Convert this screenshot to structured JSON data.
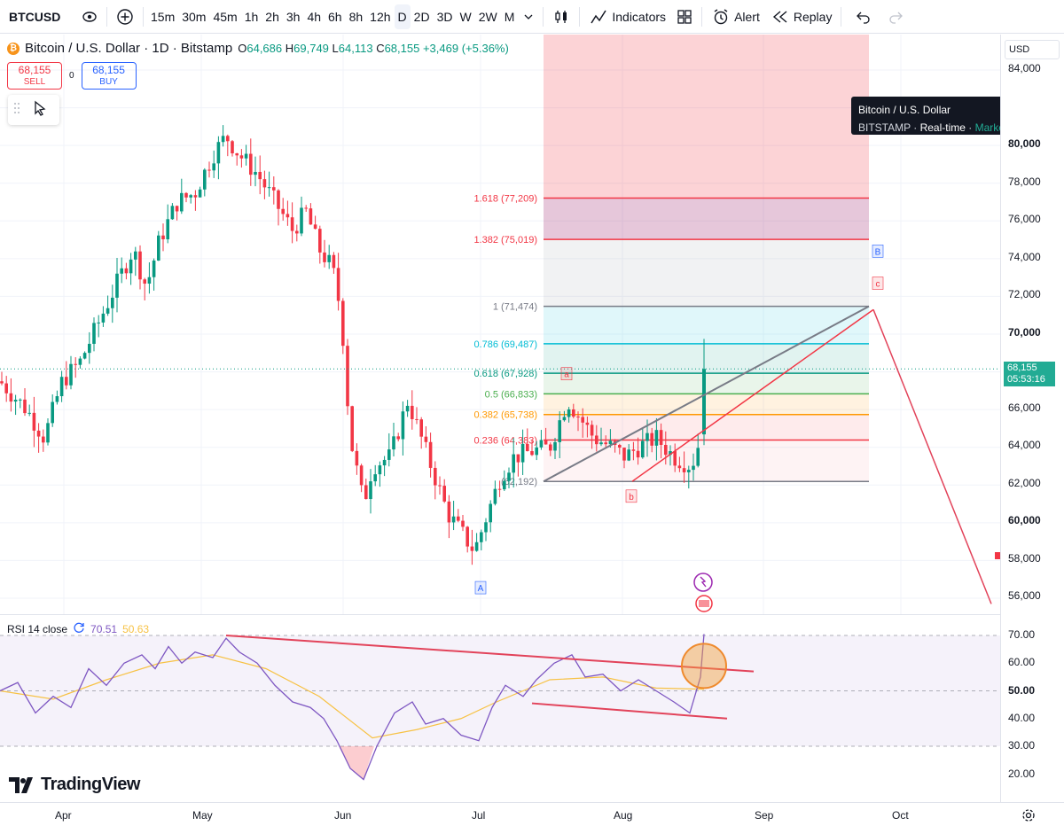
{
  "toolbar": {
    "symbol": "BTCUSD",
    "timeframes": [
      "15m",
      "30m",
      "45m",
      "1h",
      "2h",
      "3h",
      "4h",
      "6h",
      "8h",
      "12h",
      "D",
      "2D",
      "3D",
      "W",
      "2W",
      "M"
    ],
    "active_timeframe": "D",
    "indicators_label": "Indicators",
    "alert_label": "Alert",
    "replay_label": "Replay"
  },
  "legend": {
    "title": "Bitcoin / U.S. Dollar · 1D · Bitstamp",
    "open_key": "O",
    "open": "64,686",
    "high_key": "H",
    "high": "69,749",
    "low_key": "L",
    "low": "64,113",
    "close_key": "C",
    "close": "68,155",
    "change": "+3,469 (+5.36%)"
  },
  "trade": {
    "sell_price": "68,155",
    "sell_label": "SELL",
    "spread": "0",
    "buy_price": "68,155",
    "buy_label": "BUY"
  },
  "tooltip": {
    "title": "Bitcoin / U.S. Dollar",
    "exchange": "BITSTAMP",
    "feed": "Real-time",
    "status": "Market open"
  },
  "price_scale": {
    "currency": "USD",
    "labels": [
      "84,000",
      "80,000",
      "78,000",
      "76,000",
      "74,000",
      "72,000",
      "70,000",
      "66,000",
      "64,000",
      "62,000",
      "60,000",
      "58,000",
      "56,000"
    ],
    "last_price": "68,155",
    "countdown": "05:53:16",
    "rsi_labels": [
      "70.00",
      "60.00",
      "50.00",
      "40.00",
      "30.00",
      "20.00"
    ]
  },
  "fib": [
    {
      "label": "1.618 (77,209)",
      "color": "#f23645"
    },
    {
      "label": "1.382 (75,019)",
      "color": "#f23645"
    },
    {
      "label": "1 (71,474)",
      "color": "#787b86"
    },
    {
      "label": "0.786 (69,487)",
      "color": "#00bcd4"
    },
    {
      "label": "0.618 (67,928)",
      "color": "#089981"
    },
    {
      "label": "0.5 (66,833)",
      "color": "#4caf50"
    },
    {
      "label": "0.382 (65,738)",
      "color": "#ff9800"
    },
    {
      "label": "0.236 (64,383)",
      "color": "#f23645"
    },
    {
      "label": "(62,192)",
      "color": "#787b86"
    }
  ],
  "wave_labels": [
    "A",
    "a",
    "b",
    "B",
    "c"
  ],
  "rsi": {
    "label": "RSI 14 close",
    "value1": "70.51",
    "value2": "50.63"
  },
  "time_axis": [
    "Apr",
    "May",
    "Jun",
    "Jul",
    "Aug",
    "Sep",
    "Oct"
  ],
  "brand": "TradingView",
  "colors": {
    "up": "#089981",
    "down": "#f23645",
    "rsi_line": "#7e57c2",
    "rsi_ma": "#f7c245",
    "accent": "#2962ff"
  }
}
